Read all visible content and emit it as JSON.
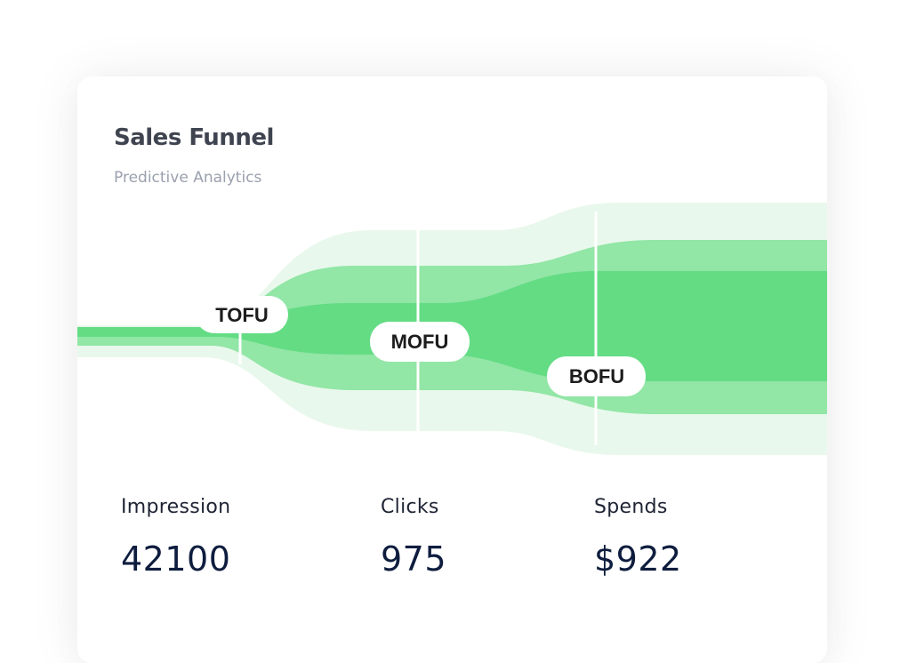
{
  "card": {
    "title": "Sales Funnel",
    "subtitle": "Predictive Analytics"
  },
  "funnel": {
    "stages": [
      "TOFU",
      "MOFU",
      "BOFU"
    ],
    "colors": {
      "outer": "#e9f8ec",
      "middle": "#92e6a6",
      "inner": "#64dc84",
      "divider": "#ffffff"
    }
  },
  "metrics": [
    {
      "label": "Impression",
      "value": "42100"
    },
    {
      "label": "Clicks",
      "value": "975"
    },
    {
      "label": "Spends",
      "value": "$922"
    }
  ]
}
